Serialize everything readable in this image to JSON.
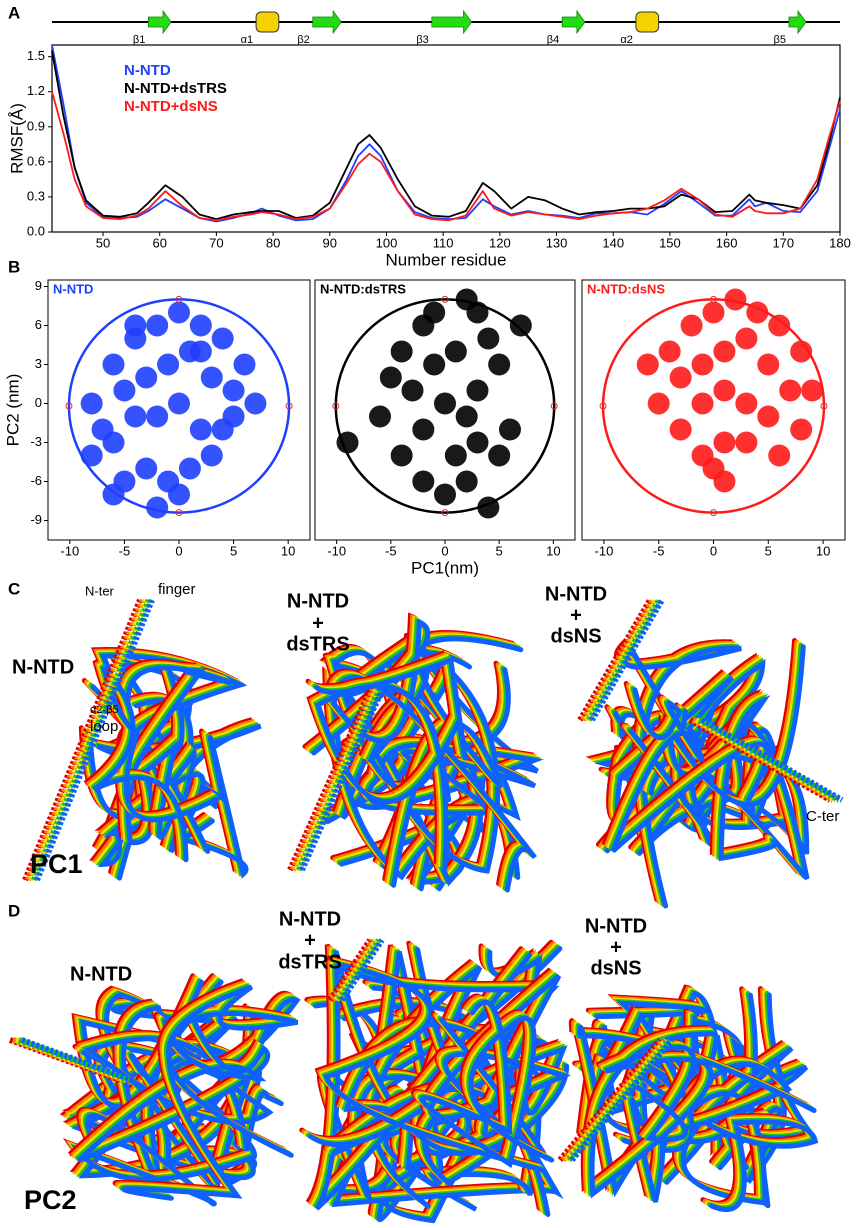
{
  "panel_labels": [
    "A",
    "B",
    "C",
    "D"
  ],
  "chart_data": [
    {
      "type": "line",
      "xlabel": "Number residue",
      "ylabel": "RMSF(Å)",
      "legend": "upper left",
      "x": [
        41,
        43,
        45,
        47,
        50,
        53,
        56,
        58,
        61,
        64,
        67,
        70,
        73,
        76,
        78,
        81,
        84,
        87,
        90,
        93,
        95,
        97,
        99,
        102,
        105,
        108,
        111,
        114,
        117,
        119,
        122,
        125,
        128,
        131,
        134,
        137,
        140,
        143,
        146,
        149,
        152,
        155,
        158,
        161,
        164,
        165,
        167,
        170,
        173,
        176,
        178,
        180
      ],
      "xlim": [
        41,
        180
      ],
      "xticks": [
        50,
        60,
        70,
        80,
        90,
        100,
        110,
        120,
        130,
        140,
        150,
        160,
        170,
        180
      ],
      "ylim": [
        0,
        1.6
      ],
      "yticks": [
        {
          "value": 0,
          "label": "0.0"
        },
        0.3,
        0.6,
        0.9,
        1.2,
        1.5
      ],
      "series": [
        {
          "name": "N-NTD",
          "color": "#1f3fff",
          "values": [
            1.6,
            1.1,
            0.55,
            0.25,
            0.13,
            0.12,
            0.13,
            0.18,
            0.28,
            0.2,
            0.12,
            0.09,
            0.12,
            0.16,
            0.2,
            0.14,
            0.1,
            0.11,
            0.2,
            0.45,
            0.65,
            0.75,
            0.65,
            0.35,
            0.17,
            0.12,
            0.11,
            0.12,
            0.28,
            0.22,
            0.15,
            0.18,
            0.15,
            0.14,
            0.12,
            0.16,
            0.16,
            0.17,
            0.15,
            0.24,
            0.35,
            0.25,
            0.14,
            0.14,
            0.28,
            0.22,
            0.25,
            0.18,
            0.17,
            0.35,
            0.7,
            1.05
          ]
        },
        {
          "name": "N-NTD+dsTRS",
          "color": "#000000",
          "values": [
            1.55,
            1.0,
            0.55,
            0.27,
            0.14,
            0.13,
            0.16,
            0.25,
            0.4,
            0.3,
            0.15,
            0.11,
            0.15,
            0.17,
            0.18,
            0.18,
            0.12,
            0.14,
            0.25,
            0.55,
            0.75,
            0.83,
            0.72,
            0.45,
            0.22,
            0.14,
            0.13,
            0.18,
            0.42,
            0.35,
            0.2,
            0.3,
            0.27,
            0.2,
            0.15,
            0.17,
            0.18,
            0.2,
            0.2,
            0.22,
            0.32,
            0.28,
            0.17,
            0.18,
            0.32,
            0.27,
            0.25,
            0.23,
            0.2,
            0.4,
            0.75,
            1.15
          ]
        },
        {
          "name": "N-NTD+dsNS",
          "color": "#ff1a1a",
          "values": [
            1.2,
            0.85,
            0.45,
            0.22,
            0.12,
            0.11,
            0.14,
            0.2,
            0.35,
            0.22,
            0.12,
            0.1,
            0.13,
            0.15,
            0.17,
            0.15,
            0.11,
            0.13,
            0.2,
            0.42,
            0.58,
            0.67,
            0.6,
            0.35,
            0.15,
            0.11,
            0.1,
            0.14,
            0.35,
            0.2,
            0.14,
            0.17,
            0.15,
            0.13,
            0.11,
            0.14,
            0.16,
            0.17,
            0.2,
            0.27,
            0.37,
            0.28,
            0.15,
            0.13,
            0.22,
            0.18,
            0.16,
            0.16,
            0.2,
            0.45,
            0.8,
            1.12
          ]
        }
      ],
      "secondary_structure": [
        {
          "label": "β1",
          "type": "strand",
          "start": 58,
          "end": 62
        },
        {
          "label": "α1",
          "type": "helix",
          "start": 77,
          "end": 81
        },
        {
          "label": "β2",
          "type": "strand",
          "start": 87,
          "end": 92
        },
        {
          "label": "β3",
          "type": "strand",
          "start": 108,
          "end": 115
        },
        {
          "label": "β4",
          "type": "strand",
          "start": 131,
          "end": 135
        },
        {
          "label": "α2",
          "type": "helix",
          "start": 144,
          "end": 148
        },
        {
          "label": "β5",
          "type": "strand",
          "start": 171,
          "end": 174
        }
      ]
    },
    {
      "type": "scatter",
      "title": "N-NTD",
      "color": "#1f3fff",
      "ylabel": "PC2 (nm)",
      "x": [
        -8,
        -6,
        -4,
        -2,
        0,
        2,
        4,
        6,
        7,
        -7,
        -5,
        -3,
        -1,
        1,
        3,
        5,
        -6,
        -4,
        -2,
        0,
        2,
        4,
        -3,
        -1,
        1,
        -2,
        0,
        -8,
        -5,
        3,
        -4,
        2,
        -6,
        5
      ],
      "y": [
        0,
        3,
        5,
        6,
        7,
        6,
        5,
        3,
        0,
        -2,
        1,
        2,
        3,
        4,
        2,
        1,
        -3,
        -1,
        -1,
        0,
        -2,
        -2,
        -5,
        -6,
        -5,
        -8,
        -7,
        -4,
        -6,
        -4,
        6,
        4,
        -7,
        -1
      ],
      "xlim": [
        -12,
        12
      ],
      "xticks": [
        -10,
        -5,
        0,
        5,
        10
      ],
      "ylim": [
        -10.5,
        9.5
      ],
      "yticks": [
        -9,
        -6,
        -3,
        0,
        3,
        6,
        9
      ]
    },
    {
      "type": "scatter",
      "title": "N-NTD:dsTRS",
      "color": "#000000",
      "xlabel": "PC1(nm)",
      "x": [
        -9,
        -6,
        -5,
        -4,
        -2,
        -1,
        2,
        3,
        7,
        -3,
        -1,
        1,
        4,
        5,
        0,
        2,
        -2,
        3,
        1,
        0,
        2,
        4,
        5,
        6,
        3,
        -4,
        -2
      ],
      "y": [
        -3,
        -1,
        2,
        4,
        6,
        7,
        8,
        7,
        6,
        1,
        3,
        4,
        5,
        3,
        0,
        -1,
        -2,
        -3,
        -4,
        -7,
        -6,
        -8,
        -4,
        -2,
        1,
        -4,
        -6
      ],
      "xlim": [
        -12,
        12
      ],
      "xticks": [
        -10,
        -5,
        0,
        5,
        10
      ],
      "ylim": [
        -10.5,
        9.5
      ]
    },
    {
      "type": "scatter",
      "title": "N-NTD:dsNS",
      "color": "#ff1a1a",
      "x": [
        -6,
        -4,
        -2,
        0,
        2,
        4,
        6,
        8,
        9,
        -5,
        -3,
        -1,
        1,
        3,
        5,
        7,
        -3,
        -1,
        1,
        3,
        5,
        8,
        -1,
        1,
        3,
        6,
        1,
        0
      ],
      "y": [
        3,
        4,
        6,
        7,
        8,
        7,
        6,
        4,
        1,
        0,
        2,
        3,
        4,
        5,
        3,
        1,
        -2,
        0,
        1,
        0,
        -1,
        -2,
        -4,
        -3,
        -3,
        -4,
        -6,
        -5
      ],
      "xlim": [
        -12,
        12
      ],
      "xticks": [
        -10,
        -5,
        0,
        5,
        10
      ],
      "ylim": [
        -10.5,
        9.5
      ]
    }
  ],
  "panel_c": {
    "title": "PC1",
    "n_ter": "N-ter",
    "finger": "finger",
    "loop": [
      "α2-β5",
      "loop"
    ],
    "c_ter": "C-ter",
    "complexes": [
      [
        "N-NTD"
      ],
      [
        "N-NTD",
        "+",
        "dsTRS"
      ],
      [
        "N-NTD",
        "+",
        "dsNS"
      ]
    ]
  },
  "panel_d": {
    "title": "PC2",
    "complexes": [
      [
        "N-NTD"
      ],
      [
        "N-NTD",
        "+",
        "dsTRS"
      ],
      [
        "N-NTD",
        "+",
        "dsNS"
      ]
    ]
  }
}
